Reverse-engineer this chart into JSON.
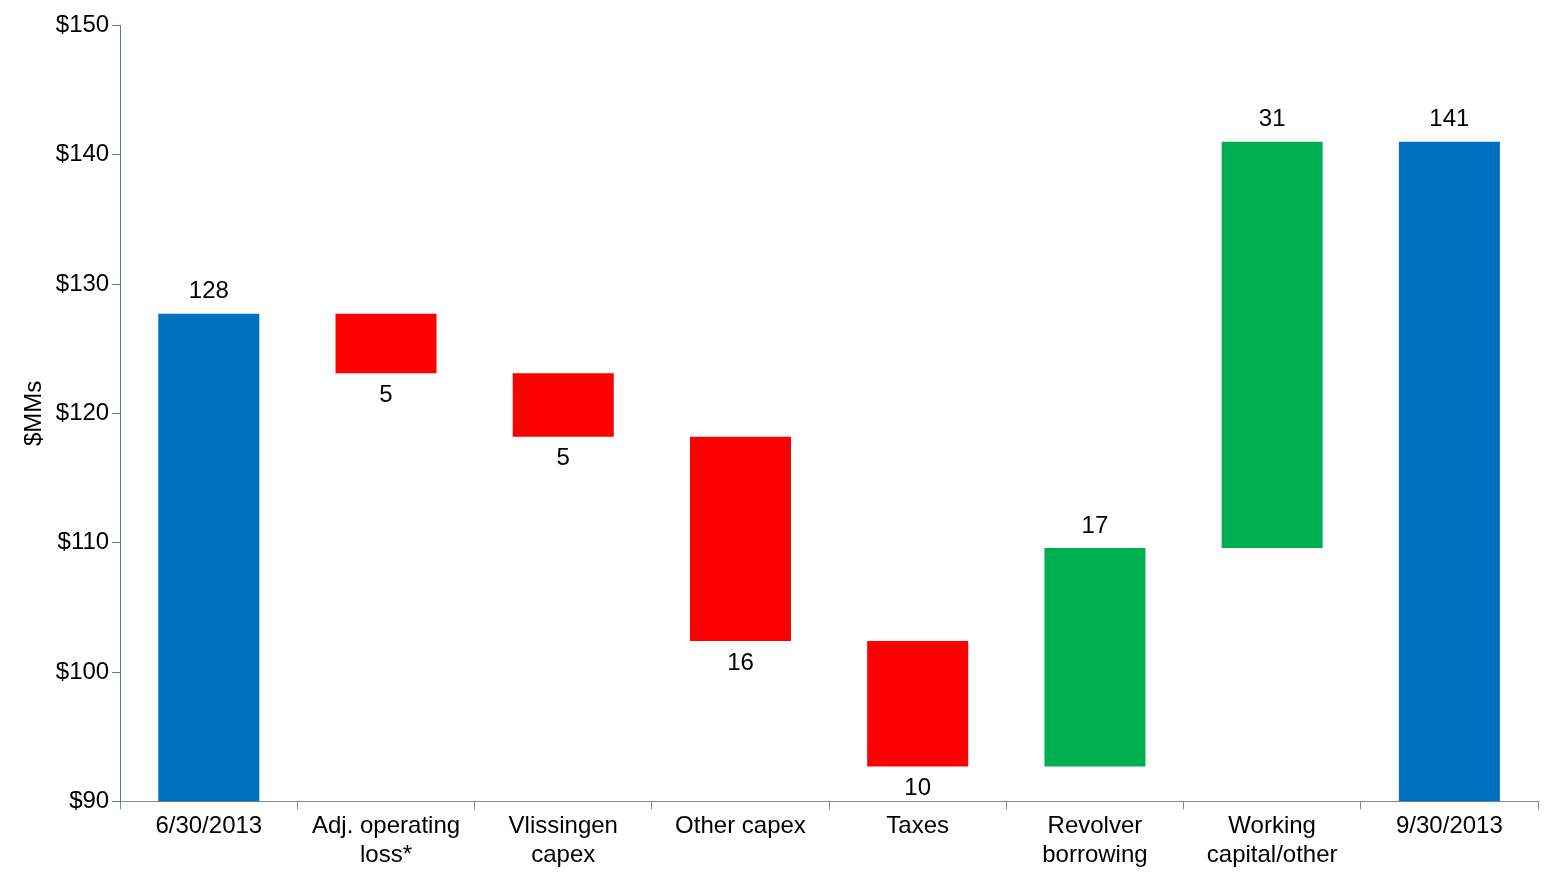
{
  "chart_data": {
    "type": "bar",
    "ylabel": "$MMs",
    "categories": [
      "6/30/2013",
      "Adj. operating loss*",
      "Vlissingen capex",
      "Other capex",
      "Taxes",
      "Revolver borrowing",
      "Working capital/other",
      "9/30/2013"
    ],
    "base": [
      90,
      127.7,
      123.1,
      118.2,
      102.4,
      92.7,
      109.6,
      90
    ],
    "values": [
      37.7,
      -4.6,
      -4.9,
      -15.8,
      -9.7,
      16.9,
      31.4,
      51
    ],
    "value_labels": [
      "128",
      "5",
      "5",
      "16",
      "10",
      "17",
      "31",
      "141"
    ],
    "colors": [
      "#0070c0",
      "#ff0000",
      "#ff0000",
      "#ff0000",
      "#ff0000",
      "#00b050",
      "#00b050",
      "#0070c0"
    ],
    "ylim": [
      90,
      150
    ],
    "yticks": [
      {
        "value": 90,
        "label": "$90"
      },
      {
        "value": 100,
        "label": "$100"
      },
      {
        "value": 110,
        "label": "$110"
      },
      {
        "value": 120,
        "label": "$120"
      },
      {
        "value": 130,
        "label": "$130"
      },
      {
        "value": 140,
        "label": "$140"
      },
      {
        "value": 150,
        "label": "$150"
      }
    ],
    "grid": false,
    "legend": false
  }
}
